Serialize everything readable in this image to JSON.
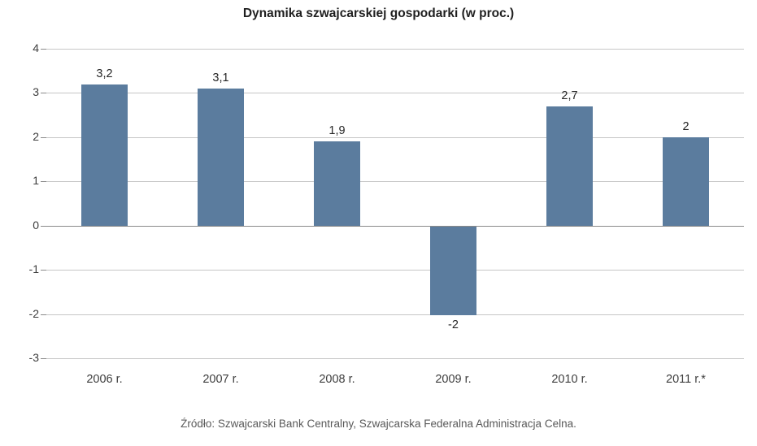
{
  "title": "Dynamika szwajcarskiej gospodarki (w proc.)",
  "source": "Źródło: Szwajcarski Bank Centralny, Szwajcarska Federalna Administracja Celna.",
  "colors": {
    "bar": "#5b7c9e",
    "grid": "#c6c6c6",
    "zero_line": "#8a8a8a",
    "title_text": "#1f1f1f",
    "axis_text": "#3d3d3d",
    "source_text": "#595959",
    "background": "#ffffff"
  },
  "chart_data": {
    "type": "bar",
    "title": "Dynamika szwajcarskiej gospodarki (w proc.)",
    "categories": [
      "2006 r.",
      "2007 r.",
      "2008 r.",
      "2009 r.",
      "2010 r.",
      "2011 r.*"
    ],
    "values": [
      3.2,
      3.1,
      1.9,
      -2,
      2.7,
      2
    ],
    "value_labels": [
      "3,2",
      "3,1",
      "1,9",
      "-2",
      "2,7",
      "2"
    ],
    "xlabel": "",
    "ylabel": "",
    "ylim": [
      -3,
      4
    ],
    "yticks": [
      4,
      3,
      2,
      1,
      0,
      -1,
      -2,
      -3
    ],
    "ytick_labels": [
      "4",
      "3",
      "2",
      "1",
      "0",
      "-1",
      "-2",
      "-3"
    ],
    "grid": true,
    "legend": false,
    "caption": "Źródło: Szwajcarski Bank Centralny, Szwajcarska Federalna Administracja Celna."
  }
}
